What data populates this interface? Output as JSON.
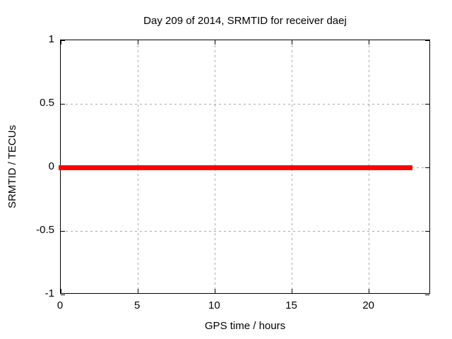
{
  "chart_data": {
    "type": "line",
    "title": "Day 209 of 2014, SRMTID for receiver daej",
    "xlabel": "GPS time / hours",
    "ylabel": "SRMTID / TECUs",
    "xlim": [
      0,
      24
    ],
    "ylim": [
      -1,
      1
    ],
    "xticks": [
      0,
      5,
      10,
      15,
      20
    ],
    "yticks": [
      -1,
      -0.5,
      0,
      0.5,
      1
    ],
    "grid": true,
    "legend": "none",
    "colors": {
      "background": "#ffffff",
      "border": "#000000",
      "grid": "#a8a8a8",
      "text": "#000000"
    },
    "series": [
      {
        "name": "SRMTID",
        "color": "#ff0000",
        "linewidth": 7,
        "points": [
          [
            0,
            0
          ],
          [
            22.8,
            0
          ]
        ]
      }
    ]
  }
}
